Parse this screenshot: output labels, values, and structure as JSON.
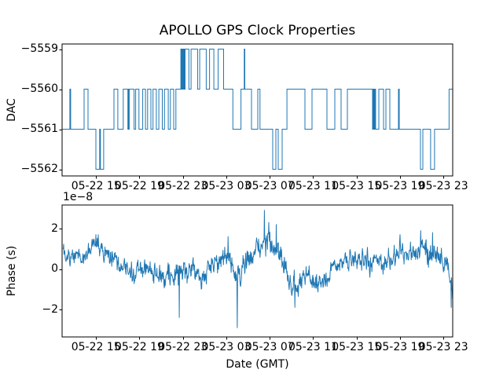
{
  "title": "APOLLO GPS Clock Properties",
  "background_color": "#ffffff",
  "accent_color": "#1f77b4",
  "axis_color": "#000000",
  "x_axis": {
    "label": "Date (GMT)",
    "tick_labels": [
      "05-22 15",
      "05-22 19",
      "05-22 23",
      "05-23 03",
      "05-23 07",
      "05-23 11",
      "05-23 15",
      "05-23 19",
      "05-23 23"
    ],
    "tick_hours": [
      15,
      19,
      23,
      27,
      31,
      35,
      39,
      43,
      47
    ],
    "xlim_hours": [
      11.87,
      47.92
    ],
    "unit": "hours since 05-22 00:00 GMT"
  },
  "chart_data": [
    {
      "type": "line",
      "style": "steps-post",
      "ylabel": "DAC",
      "yticks": [
        -5559,
        -5560,
        -5561,
        -5562
      ],
      "ytick_labels": [
        "−5559",
        "−5560",
        "−5561",
        "−5562"
      ],
      "ylim": [
        -5562.18,
        -5558.88
      ],
      "grid": false,
      "steps": [
        [
          11.87,
          -5561
        ],
        [
          12.59,
          -5560
        ],
        [
          12.66,
          -5561
        ],
        [
          13.9,
          -5560
        ],
        [
          14.26,
          -5561
        ],
        [
          14.98,
          -5562
        ],
        [
          15.33,
          -5561
        ],
        [
          15.4,
          -5562
        ],
        [
          15.7,
          -5561
        ],
        [
          16.65,
          -5560
        ],
        [
          17.0,
          -5561
        ],
        [
          17.5,
          -5560
        ],
        [
          17.93,
          -5561
        ],
        [
          17.97,
          -5560
        ],
        [
          18.01,
          -5561
        ],
        [
          18.05,
          -5560
        ],
        [
          18.5,
          -5561
        ],
        [
          18.65,
          -5560
        ],
        [
          18.95,
          -5561
        ],
        [
          19.3,
          -5560
        ],
        [
          19.55,
          -5561
        ],
        [
          19.75,
          -5560
        ],
        [
          20.05,
          -5561
        ],
        [
          20.25,
          -5560
        ],
        [
          20.55,
          -5561
        ],
        [
          20.78,
          -5560
        ],
        [
          21.1,
          -5561
        ],
        [
          21.3,
          -5560
        ],
        [
          21.65,
          -5561
        ],
        [
          21.85,
          -5560
        ],
        [
          22.15,
          -5561
        ],
        [
          22.35,
          -5560
        ],
        [
          22.81,
          -5559
        ],
        [
          22.88,
          -5560
        ],
        [
          22.93,
          -5559
        ],
        [
          22.98,
          -5560
        ],
        [
          23.02,
          -5559
        ],
        [
          23.06,
          -5560
        ],
        [
          23.1,
          -5559
        ],
        [
          23.15,
          -5560
        ],
        [
          23.2,
          -5559
        ],
        [
          23.55,
          -5560
        ],
        [
          23.75,
          -5559
        ],
        [
          24.35,
          -5560
        ],
        [
          24.55,
          -5559
        ],
        [
          25.15,
          -5560
        ],
        [
          25.45,
          -5559
        ],
        [
          25.85,
          -5560
        ],
        [
          26.25,
          -5559
        ],
        [
          26.75,
          -5560
        ],
        [
          27.6,
          -5561
        ],
        [
          28.35,
          -5560
        ],
        [
          28.65,
          -5559
        ],
        [
          28.7,
          -5560
        ],
        [
          29.32,
          -5561
        ],
        [
          29.9,
          -5560
        ],
        [
          30.1,
          -5561
        ],
        [
          31.27,
          -5562
        ],
        [
          31.56,
          -5561
        ],
        [
          31.78,
          -5562
        ],
        [
          32.14,
          -5561
        ],
        [
          32.58,
          -5560
        ],
        [
          34.24,
          -5561
        ],
        [
          34.89,
          -5560
        ],
        [
          36.27,
          -5561
        ],
        [
          36.99,
          -5560
        ],
        [
          37.57,
          -5561
        ],
        [
          38.15,
          -5560
        ],
        [
          40.47,
          -5561
        ],
        [
          40.54,
          -5560
        ],
        [
          40.61,
          -5561
        ],
        [
          40.68,
          -5560
        ],
        [
          40.75,
          -5561
        ],
        [
          41.05,
          -5560
        ],
        [
          41.48,
          -5561
        ],
        [
          41.7,
          -5560
        ],
        [
          42.06,
          -5561
        ],
        [
          42.86,
          -5560
        ],
        [
          42.93,
          -5561
        ],
        [
          44.88,
          -5562
        ],
        [
          45.1,
          -5561
        ],
        [
          45.82,
          -5562
        ],
        [
          46.18,
          -5561
        ],
        [
          47.52,
          -5560
        ]
      ],
      "x_end": 47.92
    },
    {
      "type": "line",
      "ylabel": "Phase (s)",
      "offset_text": "1e−8",
      "yticks": [
        2,
        0,
        -2
      ],
      "ytick_labels": [
        "2",
        "0",
        "−2"
      ],
      "ylim": [
        -3.36,
        3.17
      ],
      "value_scale": "1e-8 s",
      "grid": false,
      "noise": {
        "seed": 20190522,
        "n": 1150,
        "ar": 0.45,
        "innovation": 0.95,
        "jitter": 0.15
      },
      "envelope": [
        [
          11.87,
          0.6,
          0.35
        ],
        [
          13.39,
          0.5,
          0.3
        ],
        [
          14.98,
          1.15,
          0.4
        ],
        [
          15.71,
          0.95,
          0.4
        ],
        [
          17.01,
          0.2,
          0.4
        ],
        [
          18.46,
          -0.2,
          0.45
        ],
        [
          19.54,
          0.0,
          0.4
        ],
        [
          20.63,
          -0.15,
          0.4
        ],
        [
          21.71,
          -0.5,
          0.5
        ],
        [
          22.66,
          -0.3,
          0.55
        ],
        [
          23.53,
          -0.2,
          0.45
        ],
        [
          24.83,
          -0.35,
          0.5
        ],
        [
          25.7,
          0.1,
          0.4
        ],
        [
          26.42,
          0.45,
          0.4
        ],
        [
          27.15,
          0.8,
          0.5
        ],
        [
          27.87,
          -0.35,
          0.45
        ],
        [
          28.81,
          0.3,
          0.45
        ],
        [
          29.68,
          0.9,
          0.5
        ],
        [
          30.55,
          1.4,
          0.55
        ],
        [
          31.49,
          1.0,
          0.55
        ],
        [
          32.21,
          0.6,
          0.5
        ],
        [
          32.79,
          -0.7,
          0.4
        ],
        [
          33.66,
          -0.75,
          0.45
        ],
        [
          34.38,
          -0.3,
          0.4
        ],
        [
          35.11,
          -0.5,
          0.4
        ],
        [
          35.98,
          -0.7,
          0.4
        ],
        [
          36.55,
          -0.2,
          0.4
        ],
        [
          37.28,
          0.3,
          0.45
        ],
        [
          38.36,
          0.45,
          0.4
        ],
        [
          39.45,
          0.5,
          0.4
        ],
        [
          40.17,
          0.3,
          0.4
        ],
        [
          40.9,
          0.55,
          0.4
        ],
        [
          41.62,
          0.3,
          0.45
        ],
        [
          42.34,
          0.55,
          0.4
        ],
        [
          43.07,
          0.8,
          0.45
        ],
        [
          43.79,
          0.6,
          0.4
        ],
        [
          44.66,
          0.9,
          0.5
        ],
        [
          45.6,
          0.9,
          0.5
        ],
        [
          46.11,
          0.8,
          0.45
        ],
        [
          46.69,
          0.5,
          0.45
        ],
        [
          47.27,
          0.1,
          0.5
        ],
        [
          47.63,
          -0.5,
          0.5
        ],
        [
          47.84,
          -1.0,
          0.5
        ]
      ],
      "spikes": [
        [
          14.98,
          1.7
        ],
        [
          22.66,
          -2.4
        ],
        [
          27.15,
          1.6
        ],
        [
          28.0,
          -2.9
        ],
        [
          30.5,
          2.9
        ],
        [
          30.9,
          2.3
        ],
        [
          31.6,
          2.2
        ],
        [
          33.3,
          -1.9
        ],
        [
          43.0,
          1.7
        ],
        [
          44.9,
          1.9
        ],
        [
          46.0,
          1.8
        ],
        [
          47.7,
          -1.9
        ]
      ]
    }
  ]
}
